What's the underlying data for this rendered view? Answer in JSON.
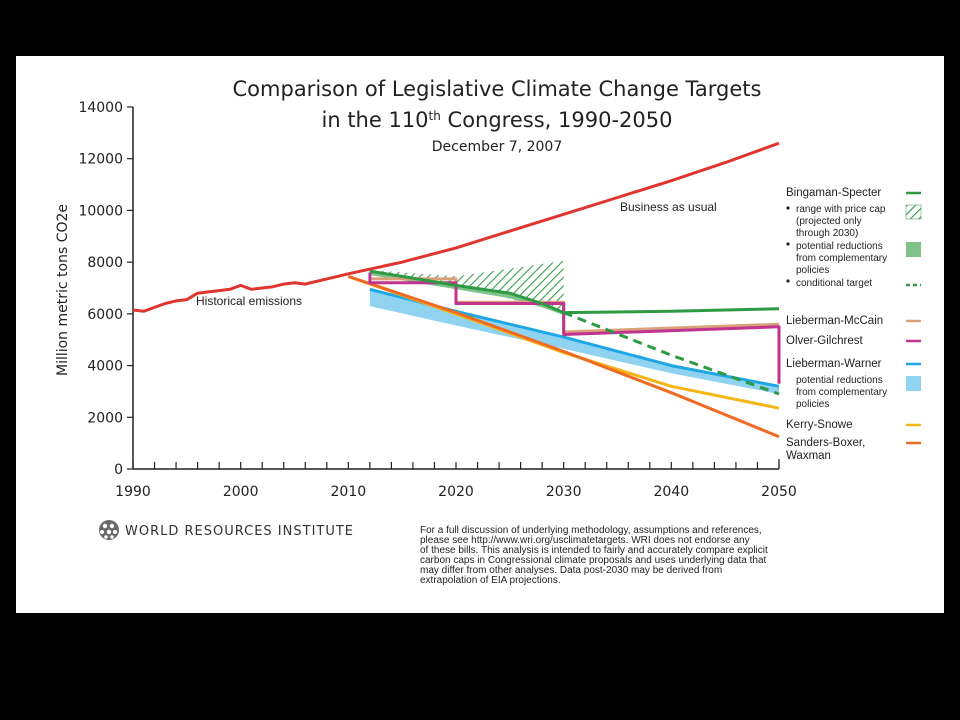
{
  "colors": {
    "business_as_usual": "#e0342f",
    "historical": "#e0342f",
    "bingaman": "#2e9a43",
    "bingaman_band": "#7fc28a",
    "lieberman_mccain": "#d9a07a",
    "olver": "#c0338f",
    "lieberman_warner": "#1ea7e6",
    "warner_band": "#8fd3f0",
    "kerry": "#f5b614",
    "sanders": "#ef6b23"
  },
  "chart_data": {
    "type": "line",
    "title_line1": "Comparison of Legislative Climate Change Targets",
    "title_line2_pre": "in the 110",
    "title_line2_sup": "th",
    "title_line2_post": " Congress, 1990-2050",
    "subtitle": "December 7, 2007",
    "ylabel": "Million metric tons CO2e",
    "xlim": [
      1990,
      2050
    ],
    "ylim": [
      0,
      14000
    ],
    "x_ticks": [
      1990,
      2000,
      2010,
      2020,
      2030,
      2040,
      2050
    ],
    "y_ticks": [
      0,
      2000,
      4000,
      6000,
      8000,
      10000,
      12000,
      14000
    ],
    "annotations": {
      "historical": "Historical emissions",
      "bau": "Business as usual"
    },
    "series": [
      {
        "name": "Historical emissions",
        "key": "historical",
        "x": [
          1990,
          1991,
          1992,
          1993,
          1994,
          1995,
          1996,
          1997,
          1998,
          1999,
          2000,
          2001,
          2002,
          2003,
          2004,
          2005,
          2006,
          2007,
          2008,
          2009,
          2010
        ],
        "y": [
          6150,
          6100,
          6250,
          6400,
          6500,
          6550,
          6800,
          6850,
          6900,
          6950,
          7100,
          6950,
          7000,
          7050,
          7150,
          7200,
          7150,
          7250,
          7350,
          7450,
          7550
        ]
      },
      {
        "name": "Business as usual",
        "key": "business_as_usual",
        "x": [
          2010,
          2015,
          2020,
          2025,
          2030,
          2035,
          2040,
          2045,
          2050
        ],
        "y": [
          7550,
          8000,
          8550,
          9200,
          9850,
          10500,
          11150,
          11850,
          12600
        ]
      },
      {
        "name": "Bingaman-Specter",
        "key": "bingaman",
        "x": [
          2012,
          2015,
          2020,
          2025,
          2028,
          2030,
          2030,
          2040,
          2050
        ],
        "y": [
          7650,
          7450,
          7100,
          6800,
          6400,
          6050,
          6050,
          6100,
          6200
        ]
      },
      {
        "name": "conditional target",
        "key": "bingaman",
        "dashed": true,
        "x": [
          2030,
          2040,
          2050
        ],
        "y": [
          6050,
          4400,
          2900
        ]
      },
      {
        "name": "Lieberman-McCain",
        "key": "lieberman_mccain",
        "x": [
          2012,
          2020,
          2020,
          2030,
          2030,
          2050
        ],
        "y": [
          7350,
          7350,
          6450,
          6450,
          5300,
          5600
        ]
      },
      {
        "name": "Olver-Gilchrest",
        "key": "olver",
        "x": [
          2012,
          2012,
          2020,
          2020,
          2030,
          2030,
          2050,
          2050
        ],
        "y": [
          7600,
          7200,
          7200,
          6400,
          6400,
          5200,
          5500,
          3300
        ]
      },
      {
        "name": "Lieberman-Warner",
        "key": "lieberman_warner",
        "x": [
          2012,
          2020,
          2030,
          2040,
          2050
        ],
        "y": [
          6950,
          6100,
          5100,
          4000,
          3200
        ]
      },
      {
        "name": "Kerry-Snowe",
        "key": "kerry",
        "x": [
          2010,
          2020,
          2030,
          2040,
          2050
        ],
        "y": [
          7450,
          6000,
          4500,
          3200,
          2350
        ]
      },
      {
        "name": "Sanders-Boxer, Waxman",
        "key": "sanders",
        "x": [
          2010,
          2020,
          2030,
          2040,
          2050
        ],
        "y": [
          7450,
          6050,
          4550,
          2950,
          1250
        ]
      }
    ],
    "bands": [
      {
        "name": "range with price cap (projected only through 2030)",
        "key": "bingaman",
        "hatched": true,
        "x": [
          2012,
          2020,
          2030
        ],
        "upper": [
          7700,
          7450,
          8050
        ],
        "lower": [
          7650,
          7100,
          6050
        ]
      },
      {
        "name": "potential reductions from complementary policies",
        "key": "bingaman_band",
        "x": [
          2012,
          2020,
          2025,
          2028,
          2030
        ],
        "upper": [
          7650,
          7100,
          6800,
          6400,
          6050
        ],
        "lower": [
          7500,
          6950,
          6600,
          6250,
          5950
        ]
      },
      {
        "name": "potential reductions from complementary policies",
        "key": "warner_band",
        "x": [
          2012,
          2020,
          2030,
          2040,
          2050
        ],
        "upper": [
          6950,
          6100,
          5100,
          4000,
          3200
        ],
        "lower": [
          6300,
          5550,
          4650,
          3700,
          2900
        ]
      }
    ]
  },
  "legend": {
    "bingaman": "Bingaman-Specter",
    "bingaman_range": [
      "range with price cap",
      "(projected only",
      "through 2030)"
    ],
    "bingaman_potential": [
      "potential reductions",
      "from complementary",
      "policies"
    ],
    "bingaman_conditional": "conditional target",
    "lieberman_mccain": "Lieberman-McCain",
    "olver": "Olver-Gilchrest",
    "lieberman_warner": "Lieberman-Warner",
    "warner_potential": [
      "potential reductions",
      "from complementary",
      "policies"
    ],
    "kerry": "Kerry-Snowe",
    "sanders": [
      "Sanders-Boxer,",
      "Waxman"
    ]
  },
  "footer": {
    "brand": "WORLD RESOURCES INSTITUTE",
    "note_lines": [
      "For a full discussion of underlying methodology, assumptions and references,",
      "please see http://www.wri.org/usclimatetargets. WRI does not endorse any",
      "of these bills. This analysis is intended to fairly and accurately compare explicit",
      "carbon caps in Congressional climate proposals and uses underlying data that",
      "may differ from other analyses.  Data post-2030 may be derived from",
      "extrapolation of EIA projections."
    ]
  }
}
